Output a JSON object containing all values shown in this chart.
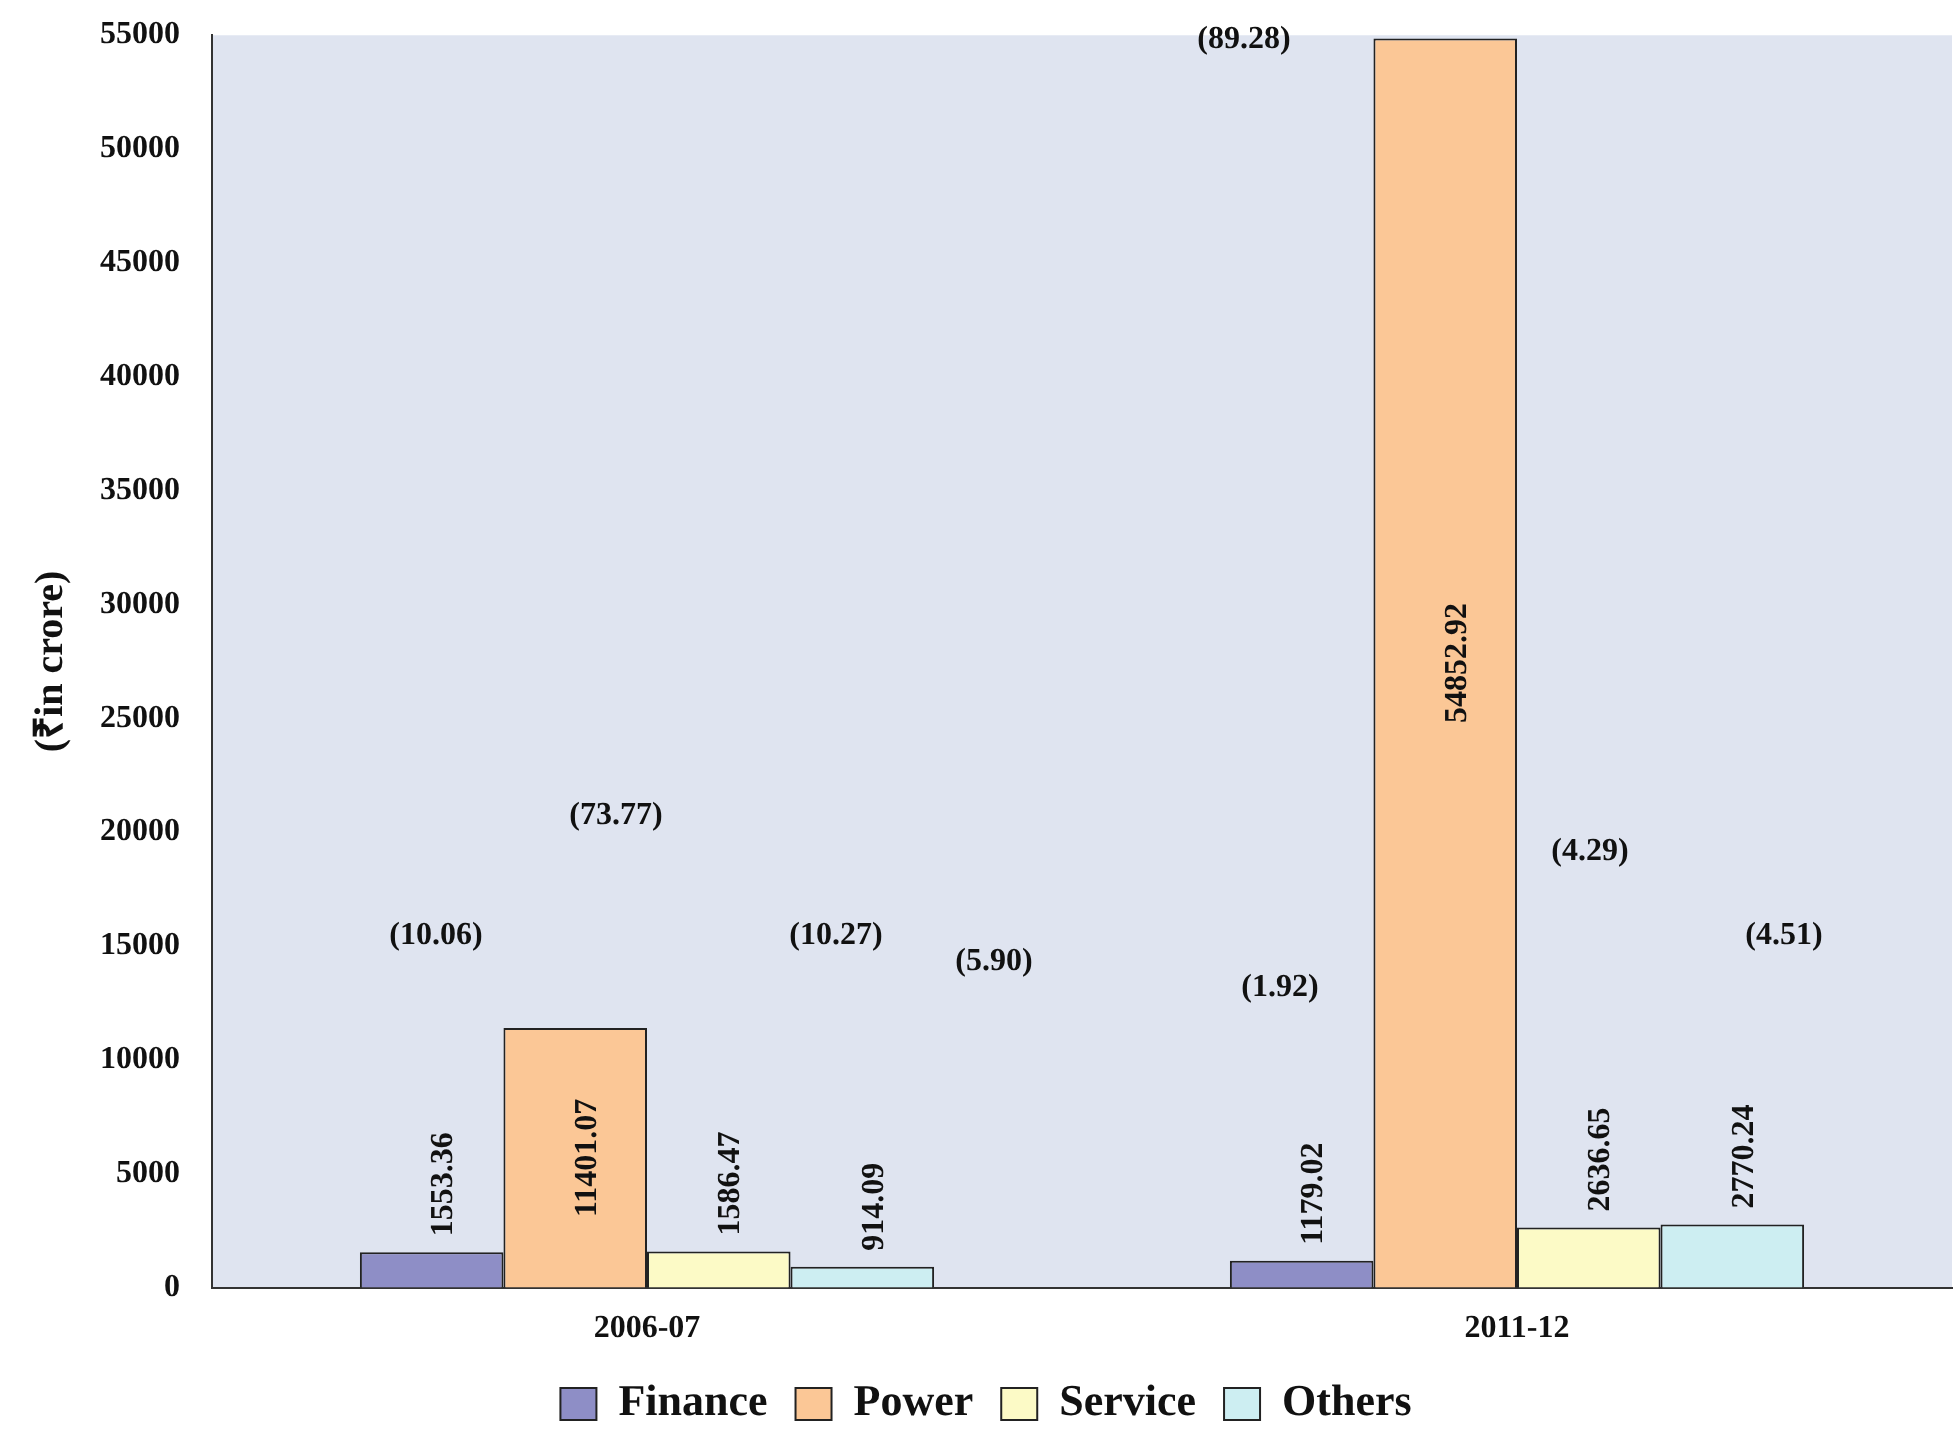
{
  "chart_data": {
    "type": "bar",
    "ylabel": "(₹in crore)",
    "categories": [
      "2006-07",
      "2011-12"
    ],
    "series": [
      {
        "name": "Finance",
        "color": "#8e8ec6",
        "values": [
          1553.36,
          1179.02
        ]
      },
      {
        "name": "Power",
        "color": "#fbc796",
        "values": [
          11401.07,
          54852.92
        ]
      },
      {
        "name": "Service",
        "color": "#fcfac6",
        "values": [
          1586.47,
          2636.65
        ]
      },
      {
        "name": "Others",
        "color": "#cdeef2",
        "values": [
          914.09,
          2770.24
        ]
      }
    ],
    "ylim": [
      0,
      55000
    ],
    "yticks": [
      0,
      5000,
      10000,
      15000,
      20000,
      25000,
      30000,
      35000,
      40000,
      45000,
      50000,
      55000
    ],
    "grid": false,
    "legend": "bottom",
    "data_labels": true,
    "annotations": [
      "(10.06)",
      "(73.77)",
      "(10.27)",
      "(5.90)",
      "(1.92)",
      "(89.28)",
      "(4.29)",
      "(4.51)"
    ]
  }
}
